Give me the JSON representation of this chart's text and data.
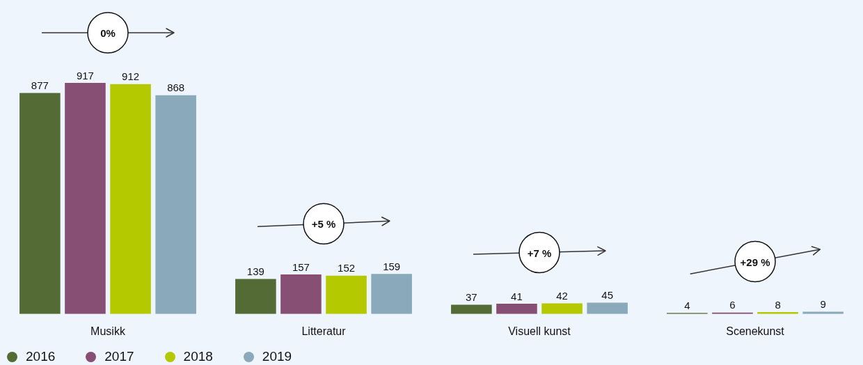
{
  "chart_data": {
    "type": "bar",
    "categories": [
      "Musikk",
      "Litteratur",
      "Visuell kunst",
      "Scenekunst"
    ],
    "series": [
      {
        "name": "2016",
        "color": "#556b35",
        "values": [
          877,
          139,
          37,
          4
        ]
      },
      {
        "name": "2017",
        "color": "#874f74",
        "values": [
          917,
          157,
          41,
          6
        ]
      },
      {
        "name": "2018",
        "color": "#b5c900",
        "values": [
          912,
          152,
          42,
          8
        ]
      },
      {
        "name": "2019",
        "color": "#8aa9bb",
        "values": [
          868,
          159,
          45,
          9
        ]
      }
    ],
    "data_labels": true,
    "legend": "bottom left",
    "tick_labels": "x",
    "annotations": [
      "0%",
      "+5 %",
      "+7 %",
      "+29 %"
    ]
  }
}
